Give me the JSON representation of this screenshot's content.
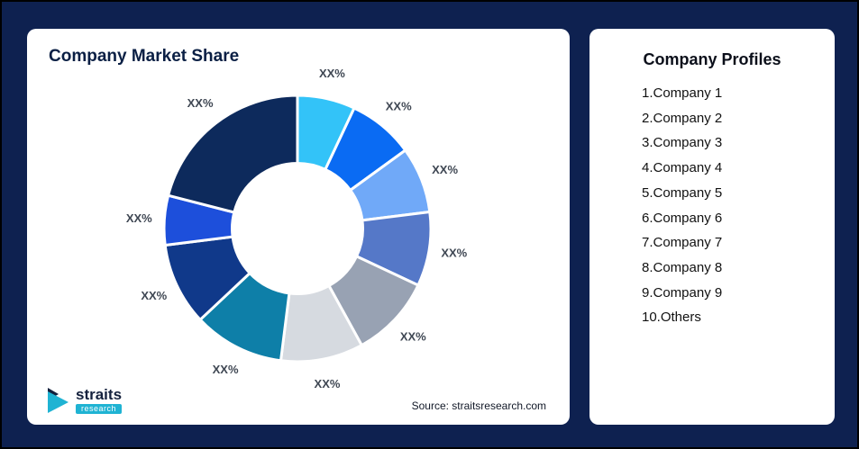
{
  "page": {
    "background_color": "#0E2150",
    "border_color": "#000000"
  },
  "chart_card": {
    "title": "Company Market Share",
    "source": "Source: straitsresearch.com"
  },
  "logo": {
    "brand": "straits",
    "sub": "research"
  },
  "profiles": {
    "title": "Company Profiles",
    "items": [
      "1.Company 1",
      "2.Company 2",
      "3.Company 3",
      "4.Company 4",
      "5.Company 5",
      "6.Company 6",
      "7.Company 7",
      "8.Company 8",
      "9.Company 9",
      "10.Others"
    ]
  },
  "chart_data": {
    "type": "pie",
    "subtype": "donut",
    "title": "Company Market Share",
    "direction": "clockwise",
    "start_angle_deg": 0,
    "inner_radius_ratio": 0.49,
    "data_labels_only_text": "XX%",
    "slices": [
      {
        "label": "XX%",
        "value": 7,
        "color": "#33C3F8"
      },
      {
        "label": "XX%",
        "value": 8,
        "color": "#0A6BF3"
      },
      {
        "label": "XX%",
        "value": 8,
        "color": "#70A9F8"
      },
      {
        "label": "XX%",
        "value": 9,
        "color": "#5578C8"
      },
      {
        "label": "XX%",
        "value": 10,
        "color": "#98A2B3"
      },
      {
        "label": "XX%",
        "value": 10,
        "color": "#D6DAE0"
      },
      {
        "label": "XX%",
        "value": 11,
        "color": "#0E7FA8"
      },
      {
        "label": "XX%",
        "value": 10,
        "color": "#10398A"
      },
      {
        "label": "XX%",
        "value": 6,
        "color": "#1D4FDB"
      },
      {
        "label": "XX%",
        "value": 21,
        "color": "#0D2A5C"
      }
    ]
  }
}
